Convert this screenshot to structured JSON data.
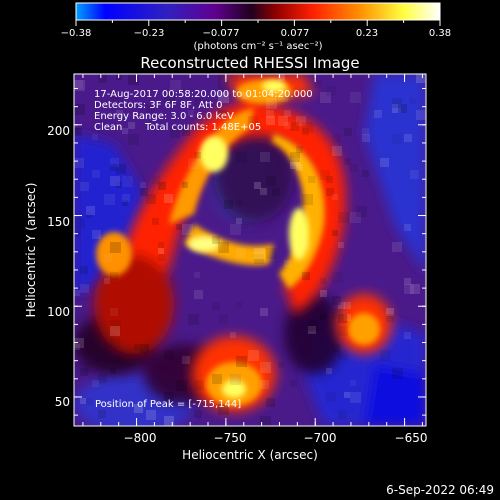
{
  "chart_data": {
    "type": "heatmap",
    "title": "Reconstructed RHESSI Image",
    "xlabel": "Heliocentric X (arcsec)",
    "ylabel": "Heliocentric Y (arcsec)",
    "xlim": [
      -835,
      -638
    ],
    "ylim": [
      34,
      228
    ],
    "x_ticks": [
      -800,
      -750,
      -700,
      -650
    ],
    "x_tick_labels": [
      "−800",
      "−750",
      "−700",
      "−650"
    ],
    "y_ticks": [
      50,
      100,
      150,
      200
    ],
    "y_tick_labels": [
      "50",
      "100",
      "150",
      "200"
    ],
    "colorbar": {
      "tick_labels": [
        "−0.38",
        "−0.23",
        "−0.077",
        "0.077",
        "0.23",
        "0.38"
      ],
      "min": -0.38,
      "max": 0.38,
      "units_label": "(photons cm⁻² s⁻¹ asec⁻²)",
      "colormap": [
        "#00a0ff",
        "#0000ff",
        "#3030c0",
        "#7020a0",
        "#501070",
        "#200020",
        "#900000",
        "#ff2000",
        "#ff9000",
        "#ffff40",
        "#ffffff"
      ]
    },
    "annotations": {
      "time_range": "17-Aug-2017 00:58:20.000 to 01:04:20.000",
      "detectors": "Detectors: 3F 6F 8F, Att 0",
      "energy_range": "Energy Range: 3.0 - 6.0 keV",
      "method": "Clean",
      "total_counts": "Total counts: 1.48E+05",
      "peak": "Position of Peak = [-715,144]"
    },
    "grid": false
  },
  "footer": {
    "date": "6-Sep-2022 06:49"
  }
}
